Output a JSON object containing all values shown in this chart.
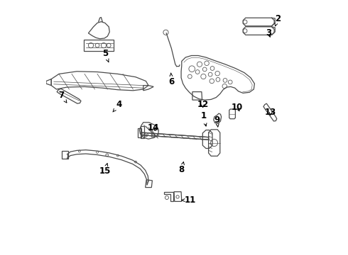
{
  "bg_color": "#ffffff",
  "line_color": "#4a4a4a",
  "label_color": "#000000",
  "font_size": 8.5,
  "lw": 0.9,
  "fig_w": 4.9,
  "fig_h": 3.6,
  "dpi": 100,
  "label_positions": {
    "1": [
      0.615,
      0.545,
      0.628,
      0.495
    ],
    "2": [
      0.905,
      0.925,
      0.895,
      0.895
    ],
    "3": [
      0.87,
      0.87,
      0.88,
      0.845
    ],
    "4": [
      0.285,
      0.59,
      0.26,
      0.56
    ],
    "5": [
      0.23,
      0.79,
      0.245,
      0.755
    ],
    "6": [
      0.49,
      0.68,
      0.488,
      0.715
    ],
    "7": [
      0.06,
      0.625,
      0.082,
      0.595
    ],
    "8": [
      0.53,
      0.335,
      0.538,
      0.368
    ],
    "9": [
      0.668,
      0.53,
      0.672,
      0.5
    ],
    "10": [
      0.748,
      0.58,
      0.76,
      0.555
    ],
    "11": [
      0.562,
      0.215,
      0.528,
      0.215
    ],
    "12": [
      0.612,
      0.59,
      0.614,
      0.568
    ],
    "13": [
      0.878,
      0.56,
      0.876,
      0.538
    ],
    "14": [
      0.42,
      0.5,
      0.432,
      0.478
    ],
    "15": [
      0.23,
      0.33,
      0.24,
      0.362
    ]
  }
}
